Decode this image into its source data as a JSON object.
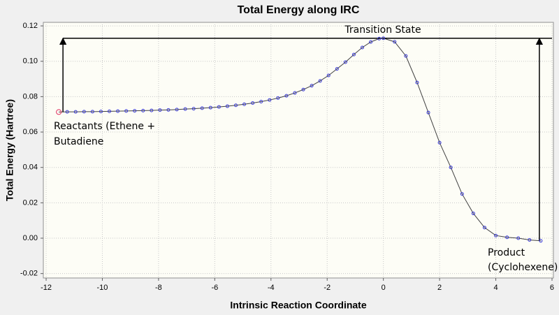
{
  "chart_data": {
    "type": "line",
    "title": "Total Energy along IRC",
    "xlabel": "Intrinsic Reaction Coordinate",
    "ylabel": "Total Energy (Hartree)",
    "xlim": [
      -12.1,
      6.05
    ],
    "ylim": [
      -0.0225,
      0.122
    ],
    "xticks": [
      -12,
      -10,
      -8,
      -6,
      -4,
      -2,
      0,
      2,
      4,
      6
    ],
    "yticks": [
      {
        "value": 0.12,
        "label": "0.12"
      },
      {
        "value": 0.1,
        "label": "0.10"
      },
      {
        "value": 0.08,
        "label": "0.08"
      },
      {
        "value": 0.06,
        "label": "0.06"
      },
      {
        "value": 0.04,
        "label": "0.04"
      },
      {
        "value": 0.02,
        "label": "0.02"
      },
      {
        "value": 0,
        "label": "0.00"
      },
      {
        "value": -0.02,
        "label": "-0.02"
      }
    ],
    "grid": true,
    "annotations": [
      "Transition State",
      "Reactants (Ethene +",
      "Butadiene",
      "Product",
      "(Cyclohexene)"
    ],
    "series": [
      {
        "color": "#3a3ad8",
        "line_color": "#404040",
        "highlight_color": "#e03060",
        "x": [
          -11.55,
          -11.25,
          -10.95,
          -10.65,
          -10.35,
          -10.05,
          -9.75,
          -9.45,
          -9.15,
          -8.85,
          -8.55,
          -8.25,
          -7.95,
          -7.65,
          -7.35,
          -7.05,
          -6.75,
          -6.45,
          -6.15,
          -5.85,
          -5.55,
          -5.25,
          -4.95,
          -4.65,
          -4.35,
          -4.05,
          -3.75,
          -3.45,
          -3.15,
          -2.85,
          -2.55,
          -2.25,
          -1.95,
          -1.65,
          -1.35,
          -1.05,
          -0.75,
          -0.45,
          -0.15,
          0,
          0.4,
          0.8,
          1.2,
          1.6,
          2.0,
          2.4,
          2.8,
          3.2,
          3.6,
          4.0,
          4.4,
          4.8,
          5.2,
          5.6
        ],
        "values": [
          0.0713,
          0.0714,
          0.0714,
          0.0715,
          0.0715,
          0.0716,
          0.0717,
          0.0718,
          0.0719,
          0.072,
          0.0721,
          0.0722,
          0.0724,
          0.0725,
          0.0727,
          0.073,
          0.0732,
          0.0735,
          0.0738,
          0.0742,
          0.0746,
          0.0751,
          0.0757,
          0.0764,
          0.0772,
          0.0781,
          0.0792,
          0.0805,
          0.0821,
          0.084,
          0.0862,
          0.0889,
          0.092,
          0.0957,
          0.0995,
          0.1038,
          0.1078,
          0.1109,
          0.1128,
          0.113,
          0.111,
          0.103,
          0.088,
          0.071,
          0.054,
          0.04,
          0.025,
          0.014,
          0.006,
          0.0015,
          0.0005,
          0.0,
          -0.001,
          -0.0015
        ]
      }
    ]
  }
}
